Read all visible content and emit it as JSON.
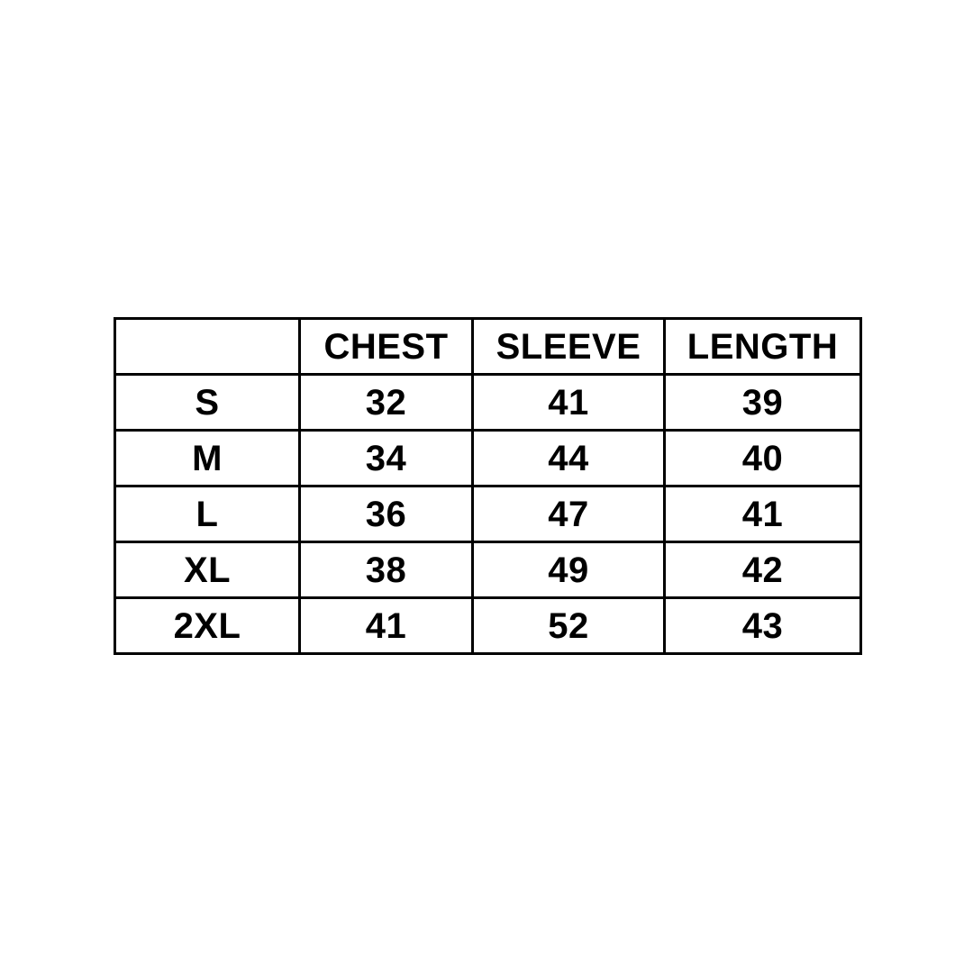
{
  "chart_data": {
    "type": "table",
    "title": "",
    "columns": [
      "",
      "CHEST",
      "SLEEVE",
      "LENGTH"
    ],
    "rows": [
      [
        "S",
        "32",
        "41",
        "39"
      ],
      [
        "M",
        "34",
        "44",
        "40"
      ],
      [
        "L",
        "36",
        "47",
        "41"
      ],
      [
        "XL",
        "38",
        "49",
        "42"
      ],
      [
        "2XL",
        "41",
        "52",
        "43"
      ]
    ],
    "text_color": "#000000",
    "grid_color": "#000000",
    "background_color": "#ffffff",
    "grid": true,
    "legend_position": "none"
  }
}
